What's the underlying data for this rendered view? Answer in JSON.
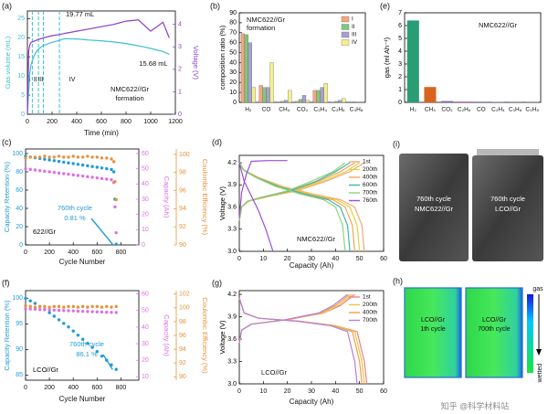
{
  "chart_data": [
    {
      "type": "line",
      "label": "(a)",
      "xlabel": "Time (min)",
      "ylabel": "Gas volume (mL)",
      "y2label": "Voltage (V)",
      "x": [
        0,
        10,
        20,
        30,
        50,
        75,
        100,
        130,
        200,
        260,
        300,
        400,
        500,
        600,
        700,
        800,
        900,
        1000,
        1100,
        1150
      ],
      "series": [
        {
          "color": "#3cc0d0",
          "values": [
            0,
            6,
            11,
            13,
            15,
            16.5,
            17.3,
            18,
            18.8,
            19.3,
            19.77,
            19.7,
            19.4,
            19.2,
            18.9,
            18.5,
            17.9,
            17.2,
            16.4,
            15.68
          ]
        },
        {
          "color": "#8a3fc6",
          "axis": "y2",
          "values": [
            0,
            2.8,
            3.1,
            3.2,
            3.25,
            3.3,
            3.35,
            3.4,
            3.5,
            3.55,
            3.6,
            3.7,
            3.8,
            3.9,
            4.0,
            4.15,
            4.2,
            3.7,
            4.1,
            3.4
          ]
        }
      ],
      "xlim": [
        0,
        1200
      ],
      "xticks": [
        0,
        200,
        400,
        600,
        800,
        1000,
        1200
      ],
      "ylim": [
        0,
        27
      ],
      "yticks": [
        0,
        5,
        10,
        15,
        20,
        25
      ],
      "y2lim": [
        0,
        4.6
      ],
      "y2ticks": [
        0,
        1,
        2,
        3,
        4
      ],
      "phase_boundaries": [
        40,
        90,
        130,
        260
      ],
      "phase_labels": [
        "I",
        "II",
        "III",
        "IV"
      ],
      "annotations": [
        "19.77 mL",
        "15.68 mL",
        "NMC622//Gr",
        "formation"
      ]
    },
    {
      "type": "bar",
      "label": "(b)",
      "ylabel": "composition ratio (%)",
      "categories": [
        "H₂",
        "CO",
        "CH₄",
        "CO₂",
        "C₂H₄",
        "C₂H₆",
        "C₃H₈"
      ],
      "series": [
        {
          "name": "I",
          "color": "#f5a57f",
          "values": [
            69,
            17,
            0.5,
            1,
            12,
            0.3,
            0
          ]
        },
        {
          "name": "II",
          "color": "#7ec97e",
          "values": [
            68,
            15,
            1,
            3,
            12,
            1,
            0
          ]
        },
        {
          "name": "III",
          "color": "#a99fcf",
          "values": [
            60,
            15,
            2,
            7,
            15,
            2,
            0.2
          ]
        },
        {
          "name": "IV",
          "color": "#f3ef8e",
          "values": [
            15,
            40,
            12,
            2,
            19,
            4,
            0.5
          ]
        }
      ],
      "ylim": [
        0,
        90
      ],
      "yticks": [
        0,
        10,
        20,
        30,
        40,
        50,
        60,
        70,
        80,
        90
      ],
      "legend": "upper right",
      "annotations": [
        "NMC622//Gr",
        "formation"
      ]
    },
    {
      "type": "bar",
      "label": "(e)",
      "ylabel": "gas (ml Ah⁻¹)",
      "categories": [
        "H₂",
        "CH₄",
        "CO₂",
        "C₂H₆",
        "CO",
        "C₂H₄",
        "C₃H₆",
        "C₃H₈"
      ],
      "values": [
        6.4,
        1.2,
        0.1,
        0.08,
        0.05,
        0.03,
        0.02,
        0.02
      ],
      "colors": [
        "#2a9d74",
        "#d9631e",
        "#7e6ab0",
        "#e377c2",
        "#7e6ab0",
        "#7e6ab0",
        "#7e6ab0",
        "#7e6ab0"
      ],
      "ylim": [
        0,
        7
      ],
      "yticks": [
        0,
        1,
        2,
        3,
        4,
        5,
        6,
        7
      ],
      "annotations": [
        "NMC622//Gr"
      ]
    },
    {
      "type": "scatter",
      "label": "(c)",
      "xlabel": "Cycle Number",
      "ylabel": "Capacity Retention (%)",
      "y2label": "Capacity (Ah)",
      "y3label": "Coulombic Efficiency (%)",
      "x": [
        0,
        40,
        80,
        120,
        160,
        200,
        240,
        280,
        320,
        360,
        400,
        440,
        480,
        520,
        560,
        600,
        640,
        680,
        720,
        740,
        750,
        760
      ],
      "series": [
        {
          "color": "#1f9bd7",
          "values": [
            97,
            96.2,
            95.4,
            94.6,
            93.8,
            93,
            92.2,
            91.4,
            90.6,
            89.8,
            89,
            88.2,
            87.4,
            86.6,
            85.8,
            85,
            84.2,
            83.4,
            82.6,
            80,
            50,
            0.81
          ]
        },
        {
          "color": "#e06fe0",
          "axis": "y2",
          "values": [
            50,
            49.6,
            49.2,
            48.8,
            48.4,
            48,
            47.6,
            47.2,
            46.8,
            46.4,
            46,
            45.6,
            45.2,
            44.8,
            44.4,
            44,
            43.6,
            43.2,
            42.8,
            41,
            25,
            8
          ]
        },
        {
          "color": "#e8913a",
          "axis": "y3",
          "values": [
            99.6,
            99.7,
            99.7,
            99.7,
            99.8,
            99.7,
            99.7,
            99.8,
            99.7,
            99.7,
            99.8,
            99.7,
            99.7,
            99.8,
            99.7,
            99.7,
            99.6,
            99.6,
            99.5,
            99.2,
            97,
            95
          ]
        }
      ],
      "xlim": [
        0,
        950
      ],
      "xticks": [
        0,
        200,
        400,
        600,
        800
      ],
      "ylim": [
        0,
        105
      ],
      "yticks": [
        0,
        20,
        40,
        60,
        80,
        100
      ],
      "y2lim": [
        0,
        63
      ],
      "y2ticks": [
        0,
        10,
        20,
        30,
        40,
        50,
        60
      ],
      "y3lim": [
        90,
        100.6
      ],
      "y3ticks": [
        90,
        92,
        94,
        96,
        98,
        100
      ],
      "annotations": [
        "622//Gr",
        "760th cycle",
        "0.81 %"
      ]
    },
    {
      "type": "line",
      "label": "(d)",
      "xlabel": "Capacity (Ah)",
      "ylabel": "Voltage (V)",
      "series": [
        {
          "name": "1st",
          "color": "#f4a582",
          "x": [
            0,
            1,
            4,
            12,
            24,
            36,
            46,
            52,
            null,
            0,
            2,
            8,
            18,
            30,
            42,
            48,
            51,
            52
          ],
          "values": [
            3.42,
            3.6,
            3.68,
            3.74,
            3.82,
            3.95,
            4.08,
            4.2,
            null,
            4.2,
            4.1,
            4.0,
            3.88,
            3.78,
            3.7,
            3.6,
            3.35,
            3.0
          ]
        },
        {
          "name": "200th",
          "color": "#e6d23a",
          "x": [
            0,
            1,
            4,
            11.5,
            23,
            34.6,
            44.2,
            50,
            null,
            0,
            1.9,
            7.7,
            17.3,
            28.8,
            40.4,
            46,
            49,
            50
          ],
          "values": [
            3.42,
            3.6,
            3.68,
            3.74,
            3.82,
            3.95,
            4.08,
            4.2,
            null,
            4.2,
            4.1,
            4.0,
            3.88,
            3.78,
            3.7,
            3.6,
            3.35,
            3.0
          ]
        },
        {
          "name": "400th",
          "color": "#f2a65a",
          "x": [
            0,
            0.9,
            3.7,
            11,
            22,
            33,
            42,
            48,
            null,
            0,
            1.8,
            7.4,
            16.6,
            27.7,
            38.8,
            44,
            47,
            48
          ],
          "values": [
            3.42,
            3.6,
            3.68,
            3.74,
            3.82,
            3.95,
            4.08,
            4.2,
            null,
            4.2,
            4.1,
            4.0,
            3.88,
            3.78,
            3.7,
            3.6,
            3.35,
            3.0
          ]
        },
        {
          "name": "600th",
          "color": "#3fb6a8",
          "x": [
            0,
            0.9,
            3.5,
            10.6,
            21,
            32,
            40,
            46,
            null,
            0,
            1.8,
            7.1,
            16,
            26.5,
            37,
            42,
            45,
            46
          ],
          "values": [
            3.42,
            3.6,
            3.68,
            3.74,
            3.82,
            3.95,
            4.08,
            4.2,
            null,
            4.2,
            4.1,
            4.0,
            3.88,
            3.78,
            3.7,
            3.6,
            3.35,
            3.0
          ]
        },
        {
          "name": "700th",
          "color": "#8fd37a",
          "x": [
            0,
            0.8,
            3.4,
            10,
            20,
            30,
            39,
            44,
            null,
            0,
            1.7,
            6.8,
            15,
            25,
            35,
            40,
            43,
            44
          ],
          "values": [
            3.42,
            3.6,
            3.68,
            3.74,
            3.82,
            3.95,
            4.08,
            4.2,
            null,
            4.2,
            4.1,
            4.0,
            3.88,
            3.78,
            3.7,
            3.6,
            3.35,
            3.0
          ]
        },
        {
          "name": "760th",
          "color": "#a24bd1",
          "x": [
            0,
            1,
            3,
            5,
            12,
            20,
            null,
            0,
            2,
            5,
            8,
            11,
            14
          ],
          "values": [
            3.45,
            3.8,
            4.05,
            4.22,
            4.23,
            4.23,
            null,
            4.2,
            3.95,
            3.75,
            3.55,
            3.3,
            3.0
          ]
        }
      ],
      "xlim": [
        0,
        60
      ],
      "xticks": [
        0,
        10,
        20,
        30,
        40,
        50,
        60
      ],
      "ylim": [
        3.0,
        4.3
      ],
      "yticks": [
        {
          "value": 3,
          "label": "3.0"
        },
        3.3,
        3.6,
        3.9,
        4.2
      ],
      "legend": "upper right",
      "annotations": [
        "NMC622//Gr"
      ]
    },
    {
      "type": "scatter",
      "label": "(f)",
      "xlabel": "Cycle Number",
      "ylabel": "Capacity Retention (%)",
      "y2label": "Capacity (Ah)",
      "y3label": "Coulombic Efficiency (%)",
      "x": [
        0,
        40,
        80,
        120,
        160,
        200,
        240,
        280,
        320,
        360,
        400,
        440,
        480,
        520,
        560,
        600,
        640,
        680,
        720,
        760
      ],
      "series": [
        {
          "color": "#1f9bd7",
          "values": [
            100,
            99.5,
            99,
            98.4,
            97.8,
            97.2,
            96.5,
            95.8,
            95.1,
            94.4,
            93.6,
            92.8,
            92,
            91.2,
            90.4,
            89.6,
            88.7,
            87.9,
            87,
            86.1
          ]
        },
        {
          "color": "#e06fe0",
          "axis": "y2",
          "values": [
            51,
            50.9,
            50.8,
            50.6,
            50.5,
            50.4,
            50.2,
            50.1,
            50,
            49.9,
            49.8,
            49.6,
            49.5,
            49.4,
            49.3,
            49.2,
            49.1,
            49,
            48.9,
            48.8
          ]
        },
        {
          "color": "#e8913a",
          "axis": "y3",
          "values": [
            100.3,
            100.2,
            100.1,
            100.2,
            100.2,
            100.1,
            100.2,
            100.2,
            100.1,
            100.2,
            100.2,
            100.1,
            100.2,
            100.1,
            100.2,
            100.2,
            100.1,
            100.2,
            100.1,
            100.2
          ]
        }
      ],
      "xlim": [
        0,
        950
      ],
      "xticks": [
        0,
        200,
        400,
        600,
        800
      ],
      "ylim": [
        84,
        101.5
      ],
      "yticks": [
        85,
        90,
        95,
        100
      ],
      "y2lim": [
        8,
        62
      ],
      "y2ticks": [
        10,
        20,
        30,
        40,
        50,
        60
      ],
      "y3lim": [
        89.5,
        102.5
      ],
      "y3ticks": [
        90,
        92,
        94,
        96,
        98,
        100,
        102
      ],
      "annotations": [
        "LCO//Gr",
        "760th cycle",
        "86.1 %"
      ]
    },
    {
      "type": "line",
      "label": "(g)",
      "xlabel": "Capacity (Ah)",
      "ylabel": "Voltage (V)",
      "series": [
        {
          "name": "1st",
          "color": "#f08080",
          "x": [
            0,
            1,
            5,
            20,
            35,
            42,
            48,
            null,
            0,
            2,
            8,
            25,
            40,
            49,
            52,
            53
          ],
          "values": [
            3.55,
            3.72,
            3.8,
            3.86,
            3.95,
            4.05,
            4.2,
            null,
            4.15,
            3.95,
            3.88,
            3.84,
            3.78,
            3.7,
            3.3,
            3.0
          ]
        },
        {
          "name": "200th",
          "color": "#e6c94a",
          "x": [
            0,
            1,
            5,
            20,
            35,
            41,
            47,
            null,
            0,
            2,
            8,
            25,
            40,
            48,
            51,
            52
          ],
          "values": [
            3.55,
            3.72,
            3.8,
            3.86,
            3.95,
            4.05,
            4.2,
            null,
            4.15,
            3.95,
            3.88,
            3.84,
            3.78,
            3.7,
            3.3,
            3.0
          ]
        },
        {
          "name": "400th",
          "color": "#f1a04a",
          "x": [
            0,
            1,
            5,
            20,
            34,
            40,
            46,
            null,
            0,
            2,
            8,
            25,
            39,
            47,
            50,
            51
          ],
          "values": [
            3.55,
            3.72,
            3.8,
            3.86,
            3.95,
            4.05,
            4.2,
            null,
            4.15,
            3.95,
            3.88,
            3.84,
            3.78,
            3.7,
            3.3,
            3.0
          ]
        },
        {
          "name": "700th",
          "color": "#b57edc",
          "x": [
            0,
            1,
            5,
            19,
            33,
            39,
            45,
            null,
            0,
            2,
            8,
            24,
            38,
            45,
            48,
            49
          ],
          "values": [
            3.55,
            3.72,
            3.8,
            3.86,
            3.95,
            4.05,
            4.2,
            null,
            4.15,
            3.95,
            3.88,
            3.84,
            3.78,
            3.7,
            3.3,
            3.0
          ]
        }
      ],
      "xlim": [
        0,
        60
      ],
      "xticks": [
        0,
        10,
        20,
        30,
        40,
        50,
        60
      ],
      "ylim": [
        3.0,
        4.25
      ],
      "yticks": [
        {
          "value": 3,
          "label": "3.0"
        },
        3.3,
        3.6,
        3.9,
        4.2
      ],
      "legend": "upper right",
      "annotations": [
        "LCO//Gr"
      ]
    }
  ],
  "photos": [
    {
      "label": "(i)",
      "items": [
        [
          "760th cycle",
          "NMC622//Gr"
        ],
        [
          "760th cycle",
          "LCO//Gr"
        ]
      ]
    },
    {
      "label": "(h)",
      "items": [
        [
          "LCO//Gr",
          "1th cycle"
        ],
        [
          "LCO//Gr",
          "700th cycle"
        ]
      ],
      "scale": [
        "gas",
        "wetted"
      ]
    }
  ],
  "watermark": "知乎 @科学材料站"
}
